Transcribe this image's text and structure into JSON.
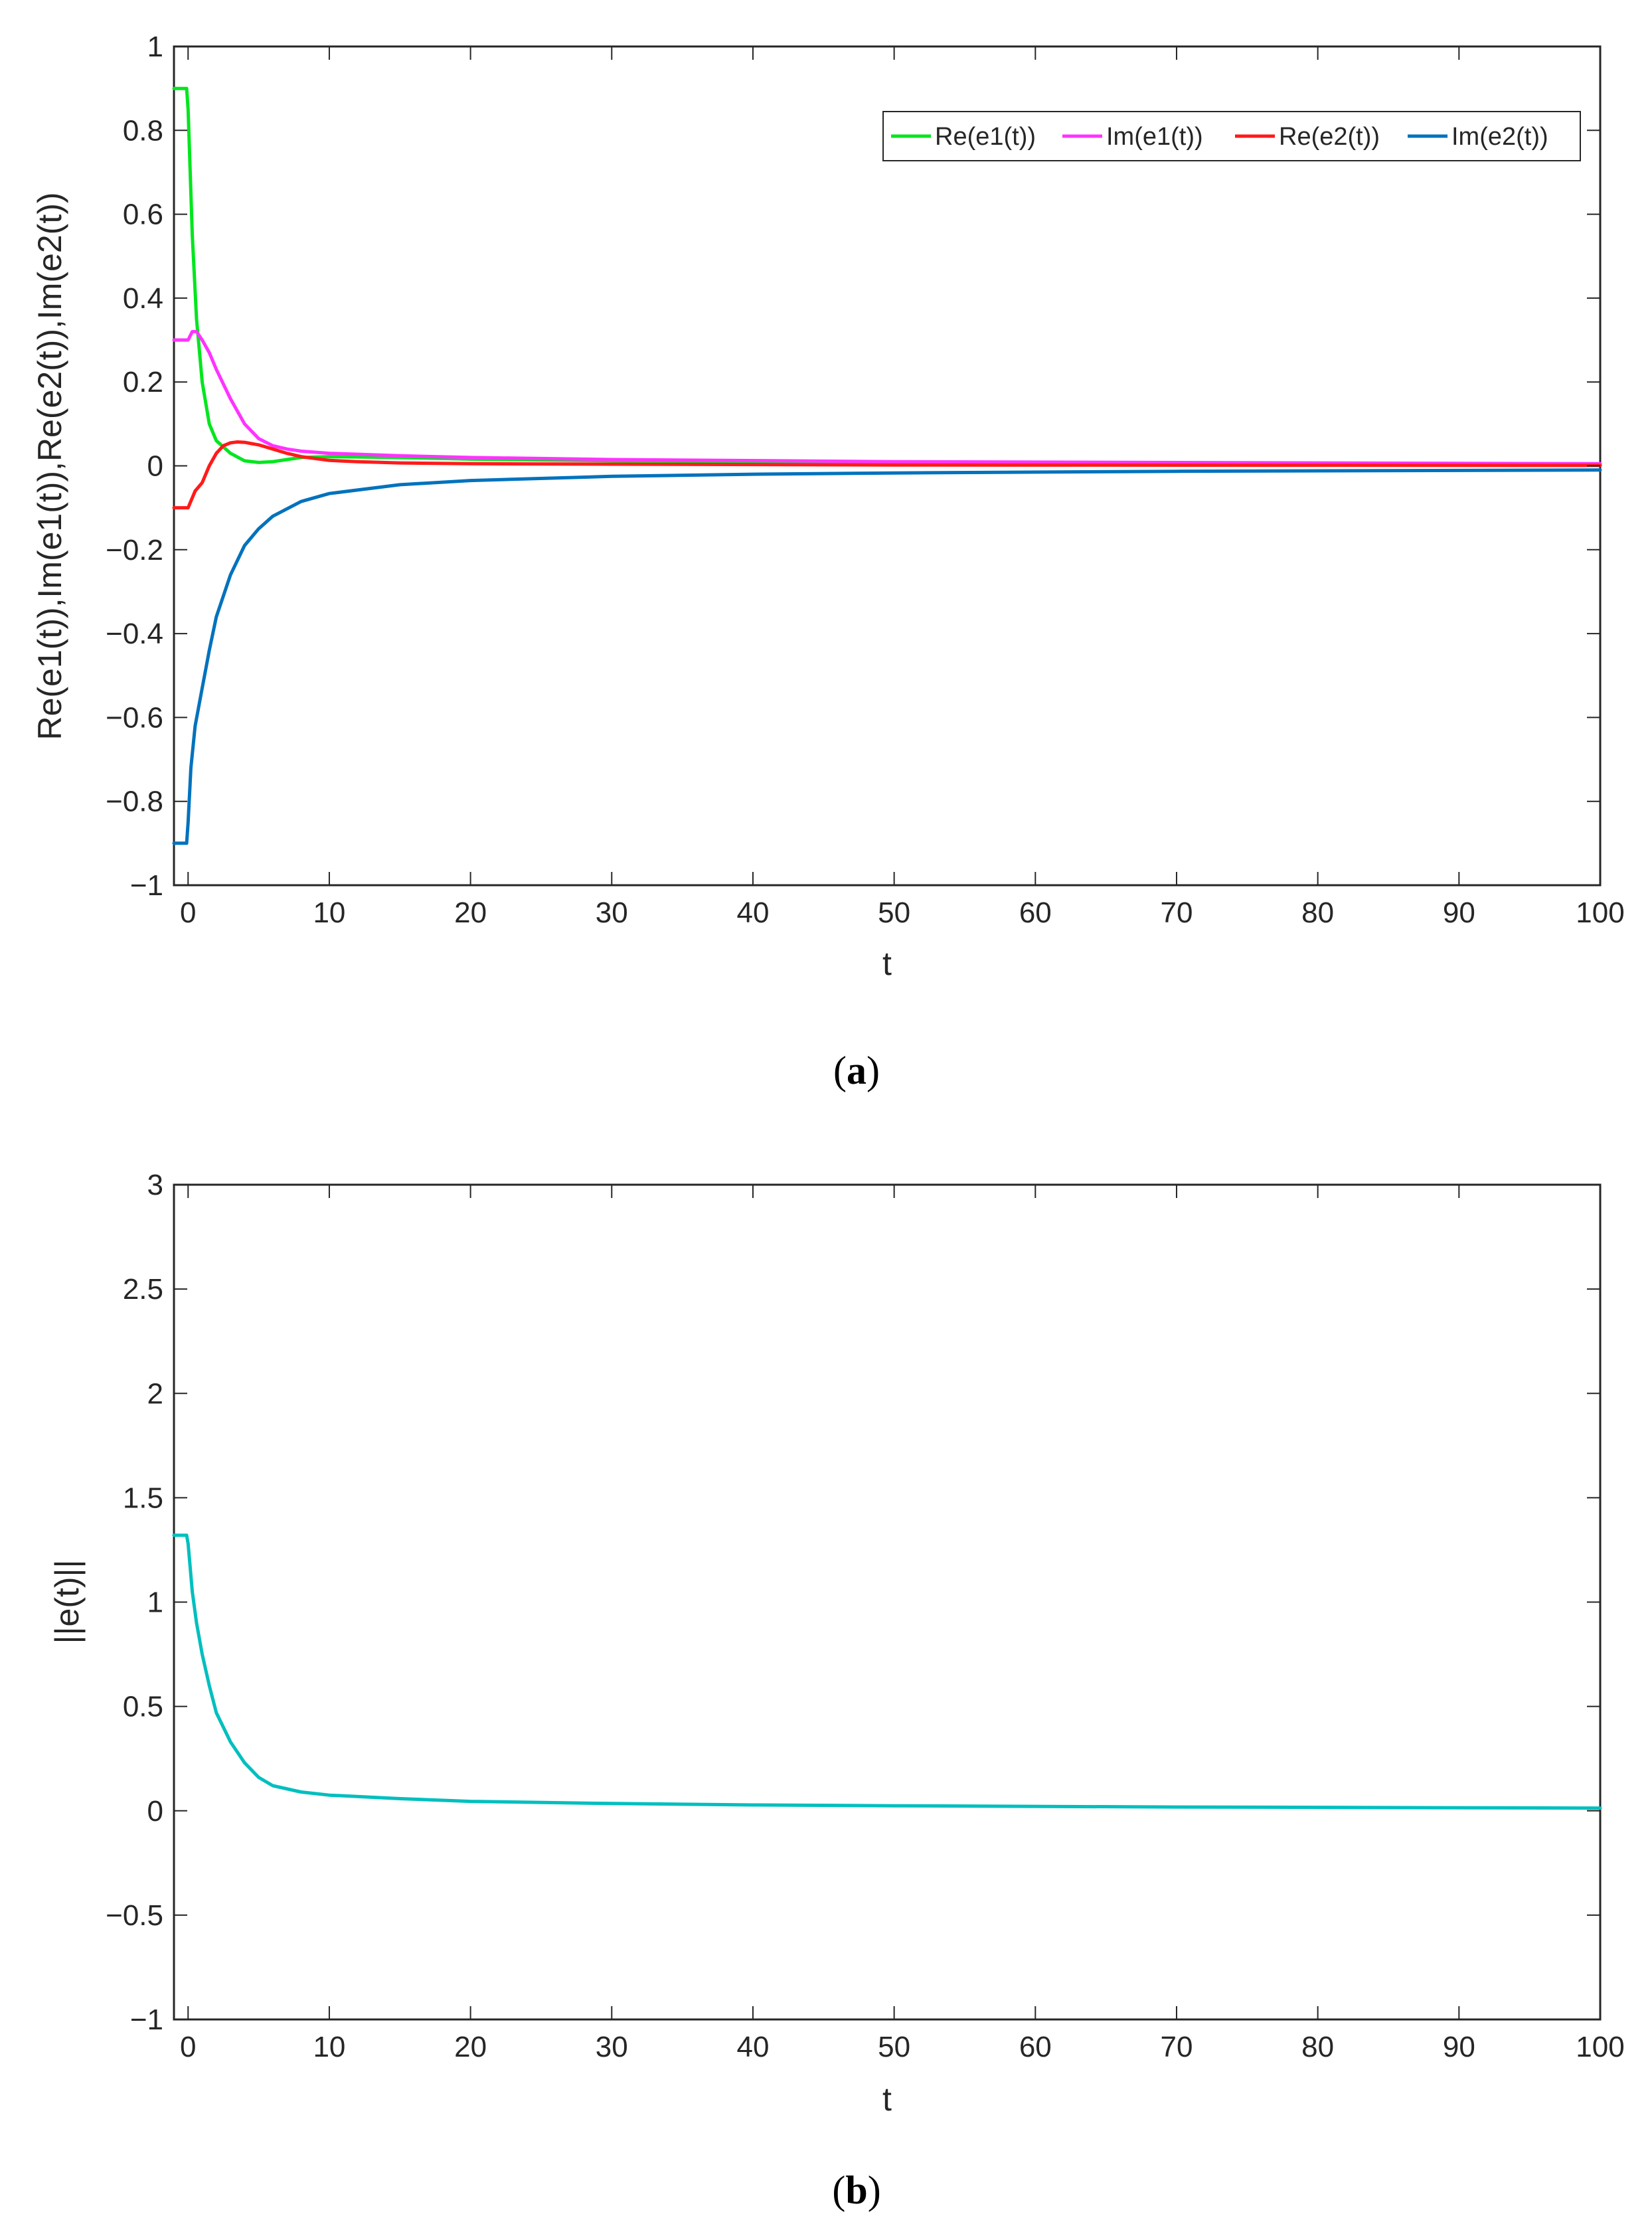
{
  "chart_data": [
    {
      "type": "line",
      "caption": "(a)",
      "caption_letter": "a",
      "xlabel": "t",
      "ylabel": "Re(e1(t)),Im(e1(t)),Re(e2(t)),Im(e2(t))",
      "xlim": [
        -1,
        100
      ],
      "ylim": [
        -1,
        1
      ],
      "xticks": [
        0,
        10,
        20,
        30,
        40,
        50,
        60,
        70,
        80,
        90,
        100
      ],
      "yticks": [
        -1,
        -0.8,
        -0.6,
        -0.4,
        -0.2,
        0,
        0.2,
        0.4,
        0.6,
        0.8,
        1
      ],
      "ytick_labels": [
        "−1",
        "−0.8",
        "−0.6",
        "−0.4",
        "−0.2",
        "0",
        "0.2",
        "0.4",
        "0.6",
        "0.8",
        "1"
      ],
      "xtick_labels": [
        "0",
        "10",
        "20",
        "30",
        "40",
        "50",
        "60",
        "70",
        "80",
        "90",
        "100"
      ],
      "grid": false,
      "legend_position": "top-right",
      "series": [
        {
          "name": "Re(e1(t))",
          "color": "#00e61e",
          "x": [
            -1,
            -0.1,
            0,
            0.3,
            0.6,
            1,
            1.5,
            2,
            3,
            4,
            5,
            6,
            7,
            8,
            10,
            15,
            20,
            30,
            50,
            100
          ],
          "y": [
            0.9,
            0.9,
            0.85,
            0.55,
            0.35,
            0.2,
            0.1,
            0.06,
            0.03,
            0.012,
            0.008,
            0.01,
            0.015,
            0.02,
            0.022,
            0.02,
            0.016,
            0.012,
            0.008,
            0.004
          ]
        },
        {
          "name": "Im(e1(t))",
          "color": "#ff33ff",
          "x": [
            -1,
            -0.1,
            0,
            0.3,
            0.6,
            1,
            1.5,
            2,
            3,
            4,
            5,
            6,
            7,
            8,
            10,
            15,
            20,
            30,
            50,
            100
          ],
          "y": [
            0.3,
            0.3,
            0.3,
            0.32,
            0.32,
            0.3,
            0.27,
            0.23,
            0.16,
            0.1,
            0.065,
            0.048,
            0.04,
            0.035,
            0.03,
            0.024,
            0.02,
            0.015,
            0.01,
            0.005
          ]
        },
        {
          "name": "Re(e2(t))",
          "color": "#ff1a1a",
          "x": [
            -1,
            -0.1,
            0,
            0.5,
            1,
            1.5,
            2,
            2.5,
            3,
            3.5,
            4,
            5,
            6,
            7,
            8,
            10,
            12,
            15,
            20,
            30,
            50,
            100
          ],
          "y": [
            -0.1,
            -0.1,
            -0.1,
            -0.06,
            -0.04,
            0.0,
            0.03,
            0.048,
            0.055,
            0.057,
            0.056,
            0.05,
            0.04,
            0.03,
            0.022,
            0.013,
            0.01,
            0.007,
            0.005,
            0.004,
            0.002,
            0.001
          ]
        },
        {
          "name": "Im(e2(t))",
          "color": "#0072bd",
          "x": [
            -1,
            -0.1,
            0,
            0.2,
            0.5,
            1,
            1.5,
            2,
            3,
            4,
            5,
            6,
            8,
            10,
            15,
            20,
            30,
            40,
            50,
            70,
            100
          ],
          "y": [
            -0.9,
            -0.9,
            -0.85,
            -0.72,
            -0.62,
            -0.53,
            -0.44,
            -0.36,
            -0.26,
            -0.19,
            -0.15,
            -0.12,
            -0.085,
            -0.066,
            -0.045,
            -0.035,
            -0.025,
            -0.02,
            -0.017,
            -0.013,
            -0.01
          ]
        }
      ]
    },
    {
      "type": "line",
      "caption": "(b)",
      "caption_letter": "b",
      "xlabel": "t",
      "ylabel": "||e(t)||",
      "xlim": [
        -1,
        100
      ],
      "ylim": [
        -1,
        3
      ],
      "xticks": [
        0,
        10,
        20,
        30,
        40,
        50,
        60,
        70,
        80,
        90,
        100
      ],
      "yticks": [
        -1,
        -0.5,
        0,
        0.5,
        1,
        1.5,
        2,
        2.5,
        3
      ],
      "ytick_labels": [
        "−1",
        "−0.5",
        "0",
        "0.5",
        "1",
        "1.5",
        "2",
        "2.5",
        "3"
      ],
      "xtick_labels": [
        "0",
        "10",
        "20",
        "30",
        "40",
        "50",
        "60",
        "70",
        "80",
        "90",
        "100"
      ],
      "grid": false,
      "series": [
        {
          "color": "#00bfbf",
          "x": [
            -1,
            -0.1,
            0,
            0.3,
            0.6,
            1,
            1.5,
            2,
            3,
            4,
            5,
            6,
            8,
            10,
            15,
            20,
            30,
            40,
            50,
            70,
            100
          ],
          "y": [
            1.32,
            1.32,
            1.28,
            1.05,
            0.9,
            0.75,
            0.6,
            0.47,
            0.33,
            0.23,
            0.16,
            0.12,
            0.09,
            0.075,
            0.058,
            0.045,
            0.035,
            0.028,
            0.024,
            0.018,
            0.013
          ]
        }
      ]
    }
  ]
}
